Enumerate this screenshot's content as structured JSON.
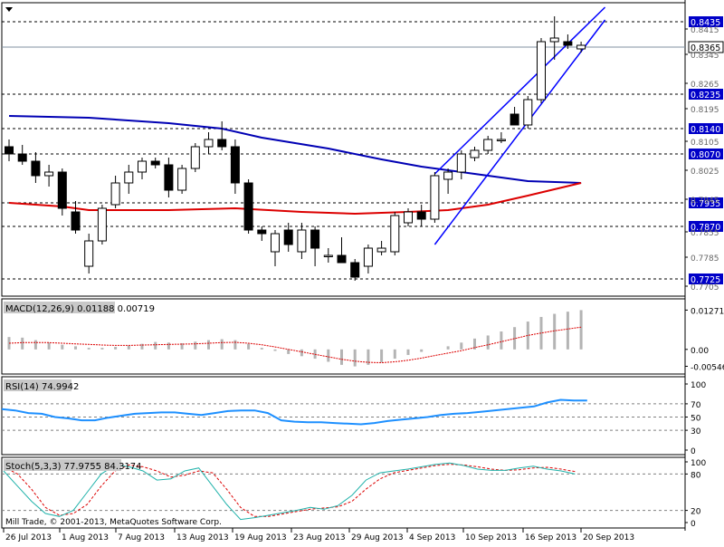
{
  "app": {
    "copyright": "Mill Trade, © 2001-2013, MetaQuotes Software Corp."
  },
  "chart_data": [
    {
      "type": "candlestick",
      "id": "price",
      "price_ticks": [
        "0.8415",
        "0.8345",
        "0.8265",
        "0.8195",
        "0.8105",
        "0.8025",
        "0.7945",
        "0.7855",
        "0.7785",
        "0.7705"
      ],
      "level_labels": [
        "0.8435",
        "0.8235",
        "0.8140",
        "0.8070",
        "0.7935",
        "0.7870",
        "0.7725"
      ],
      "current_price": "0.8365",
      "ylim": [
        0.77,
        0.846
      ],
      "candles": [
        {
          "o": 0.809,
          "h": 0.811,
          "l": 0.805,
          "c": 0.807
        },
        {
          "o": 0.807,
          "h": 0.8095,
          "l": 0.804,
          "c": 0.805
        },
        {
          "o": 0.805,
          "h": 0.8075,
          "l": 0.799,
          "c": 0.801
        },
        {
          "o": 0.801,
          "h": 0.804,
          "l": 0.798,
          "c": 0.802
        },
        {
          "o": 0.802,
          "h": 0.803,
          "l": 0.79,
          "c": 0.792
        },
        {
          "o": 0.791,
          "h": 0.794,
          "l": 0.785,
          "c": 0.786
        },
        {
          "o": 0.776,
          "h": 0.785,
          "l": 0.774,
          "c": 0.783
        },
        {
          "o": 0.783,
          "h": 0.793,
          "l": 0.782,
          "c": 0.792
        },
        {
          "o": 0.793,
          "h": 0.801,
          "l": 0.792,
          "c": 0.799
        },
        {
          "o": 0.799,
          "h": 0.804,
          "l": 0.796,
          "c": 0.802
        },
        {
          "o": 0.802,
          "h": 0.806,
          "l": 0.8,
          "c": 0.805
        },
        {
          "o": 0.805,
          "h": 0.806,
          "l": 0.803,
          "c": 0.804
        },
        {
          "o": 0.804,
          "h": 0.806,
          "l": 0.795,
          "c": 0.797
        },
        {
          "o": 0.797,
          "h": 0.804,
          "l": 0.796,
          "c": 0.803
        },
        {
          "o": 0.803,
          "h": 0.81,
          "l": 0.802,
          "c": 0.809
        },
        {
          "o": 0.809,
          "h": 0.813,
          "l": 0.807,
          "c": 0.811
        },
        {
          "o": 0.811,
          "h": 0.816,
          "l": 0.808,
          "c": 0.809
        },
        {
          "o": 0.809,
          "h": 0.811,
          "l": 0.796,
          "c": 0.799
        },
        {
          "o": 0.799,
          "h": 0.8,
          "l": 0.785,
          "c": 0.786
        },
        {
          "o": 0.786,
          "h": 0.787,
          "l": 0.783,
          "c": 0.785
        },
        {
          "o": 0.78,
          "h": 0.786,
          "l": 0.776,
          "c": 0.785
        },
        {
          "o": 0.786,
          "h": 0.788,
          "l": 0.78,
          "c": 0.782
        },
        {
          "o": 0.78,
          "h": 0.788,
          "l": 0.778,
          "c": 0.786
        },
        {
          "o": 0.786,
          "h": 0.787,
          "l": 0.776,
          "c": 0.781
        },
        {
          "o": 0.779,
          "h": 0.781,
          "l": 0.777,
          "c": 0.779
        },
        {
          "o": 0.779,
          "h": 0.784,
          "l": 0.777,
          "c": 0.777
        },
        {
          "o": 0.777,
          "h": 0.778,
          "l": 0.772,
          "c": 0.773
        },
        {
          "o": 0.776,
          "h": 0.782,
          "l": 0.774,
          "c": 0.781
        },
        {
          "o": 0.78,
          "h": 0.783,
          "l": 0.779,
          "c": 0.781
        },
        {
          "o": 0.78,
          "h": 0.791,
          "l": 0.779,
          "c": 0.79
        },
        {
          "o": 0.788,
          "h": 0.792,
          "l": 0.787,
          "c": 0.791
        },
        {
          "o": 0.791,
          "h": 0.793,
          "l": 0.787,
          "c": 0.789
        },
        {
          "o": 0.789,
          "h": 0.802,
          "l": 0.788,
          "c": 0.801
        },
        {
          "o": 0.8,
          "h": 0.803,
          "l": 0.796,
          "c": 0.802
        },
        {
          "o": 0.802,
          "h": 0.808,
          "l": 0.8,
          "c": 0.807
        },
        {
          "o": 0.806,
          "h": 0.809,
          "l": 0.805,
          "c": 0.808
        },
        {
          "o": 0.808,
          "h": 0.812,
          "l": 0.807,
          "c": 0.811
        },
        {
          "o": 0.811,
          "h": 0.813,
          "l": 0.81,
          "c": 0.811
        },
        {
          "o": 0.818,
          "h": 0.82,
          "l": 0.815,
          "c": 0.815
        },
        {
          "o": 0.815,
          "h": 0.823,
          "l": 0.814,
          "c": 0.822
        },
        {
          "o": 0.822,
          "h": 0.839,
          "l": 0.821,
          "c": 0.838
        },
        {
          "o": 0.838,
          "h": 0.845,
          "l": 0.833,
          "c": 0.839
        },
        {
          "o": 0.838,
          "h": 0.84,
          "l": 0.836,
          "c": 0.837
        },
        {
          "o": 0.836,
          "h": 0.838,
          "l": 0.835,
          "c": 0.837
        }
      ],
      "ma_blue": [
        [
          0,
          0.8175
        ],
        [
          6,
          0.817
        ],
        [
          12,
          0.8155
        ],
        [
          16,
          0.814
        ],
        [
          19,
          0.8115
        ],
        [
          24,
          0.8085
        ],
        [
          28,
          0.8055
        ],
        [
          31,
          0.8035
        ],
        [
          35,
          0.8015
        ],
        [
          39,
          0.7995
        ],
        [
          43,
          0.799
        ]
      ],
      "ma_red": [
        [
          0,
          0.7935
        ],
        [
          4,
          0.7925
        ],
        [
          6,
          0.7915
        ],
        [
          12,
          0.7915
        ],
        [
          17,
          0.792
        ],
        [
          22,
          0.791
        ],
        [
          26,
          0.7905
        ],
        [
          30,
          0.791
        ],
        [
          33,
          0.7915
        ],
        [
          36,
          0.793
        ],
        [
          39,
          0.7955
        ],
        [
          43,
          0.799
        ]
      ],
      "channel": [
        {
          "from": [
            32,
            0.8015
          ],
          "to": [
            44.8,
            0.8475
          ]
        },
        {
          "from": [
            32,
            0.782
          ],
          "to": [
            44.8,
            0.844
          ]
        }
      ]
    },
    {
      "type": "histogram",
      "id": "macd",
      "label": "MACD(12,26,9) 0.01188 0.00719",
      "ticks": [
        "0.01271",
        "0.00",
        "-0.00546"
      ],
      "ylim": [
        -0.0065,
        0.014
      ],
      "values": [
        0.004,
        0.0038,
        0.003,
        0.0022,
        0.0015,
        0.001,
        0.0005,
        0.0005,
        0.0008,
        0.0012,
        0.0018,
        0.0024,
        0.0022,
        0.002,
        0.0025,
        0.003,
        0.0033,
        0.003,
        0.0018,
        0.0005,
        -0.0005,
        -0.0015,
        -0.0022,
        -0.003,
        -0.004,
        -0.005,
        -0.0055,
        -0.005,
        -0.0042,
        -0.003,
        -0.0018,
        -0.0008,
        0.0,
        0.001,
        0.0022,
        0.0035,
        0.0045,
        0.0058,
        0.0072,
        0.009,
        0.0105,
        0.0115,
        0.0122,
        0.0127
      ],
      "signal": [
        0.002,
        0.0022,
        0.0022,
        0.0022,
        0.002,
        0.0018,
        0.0016,
        0.0014,
        0.0013,
        0.0013,
        0.0014,
        0.0015,
        0.0016,
        0.0017,
        0.0018,
        0.002,
        0.0022,
        0.0023,
        0.002,
        0.0015,
        0.0008,
        0.0,
        -0.0008,
        -0.0016,
        -0.0024,
        -0.0032,
        -0.0038,
        -0.0042,
        -0.0043,
        -0.004,
        -0.0035,
        -0.0028,
        -0.002,
        -0.0012,
        -0.0004,
        0.0006,
        0.0015,
        0.0025,
        0.0035,
        0.0045,
        0.0053,
        0.006,
        0.0066,
        0.0072
      ]
    },
    {
      "type": "line",
      "id": "rsi",
      "label": "RSI(14) 74.9942",
      "ticks": [
        "100",
        "70",
        "50",
        "30",
        "0"
      ],
      "ylim": [
        0,
        100
      ],
      "levels": [
        70,
        50,
        30
      ],
      "values": [
        62,
        60,
        56,
        55,
        50,
        48,
        45,
        45,
        49,
        52,
        55,
        56,
        57,
        57,
        55,
        53,
        56,
        59,
        60,
        60,
        56,
        45,
        43,
        42,
        42,
        41,
        40,
        39,
        41,
        44,
        46,
        48,
        50,
        53,
        55,
        56,
        58,
        60,
        62,
        64,
        66,
        72,
        76,
        75,
        75
      ]
    },
    {
      "type": "line",
      "id": "stoch",
      "label": "Stoch(5,3,3) 77.9755 84.3174",
      "ticks": [
        "100",
        "80",
        "20",
        "0"
      ],
      "ylim": [
        0,
        100
      ],
      "levels": [
        80,
        20
      ],
      "main": [
        85,
        60,
        35,
        15,
        10,
        20,
        50,
        80,
        95,
        92,
        85,
        70,
        72,
        85,
        90,
        60,
        30,
        5,
        8,
        12,
        16,
        20,
        25,
        22,
        28,
        45,
        70,
        82,
        85,
        88,
        92,
        96,
        98,
        94,
        88,
        86,
        86,
        90,
        93,
        88,
        85,
        80
      ],
      "signal": [
        92,
        80,
        55,
        25,
        12,
        15,
        30,
        60,
        85,
        95,
        92,
        85,
        75,
        78,
        85,
        82,
        55,
        25,
        10,
        10,
        14,
        18,
        22,
        24,
        26,
        35,
        55,
        72,
        82,
        86,
        90,
        94,
        96,
        95,
        92,
        88,
        86,
        87,
        90,
        91,
        88,
        84
      ]
    }
  ],
  "x_axis_labels": [
    "26 Jul 2013",
    "1 Aug 2013",
    "7 Aug 2013",
    "13 Aug 2013",
    "19 Aug 2013",
    "23 Aug 2013",
    "29 Aug 2013",
    "4 Sep 2013",
    "10 Sep 2013",
    "16 Sep 2013",
    "20 Sep 2013"
  ]
}
